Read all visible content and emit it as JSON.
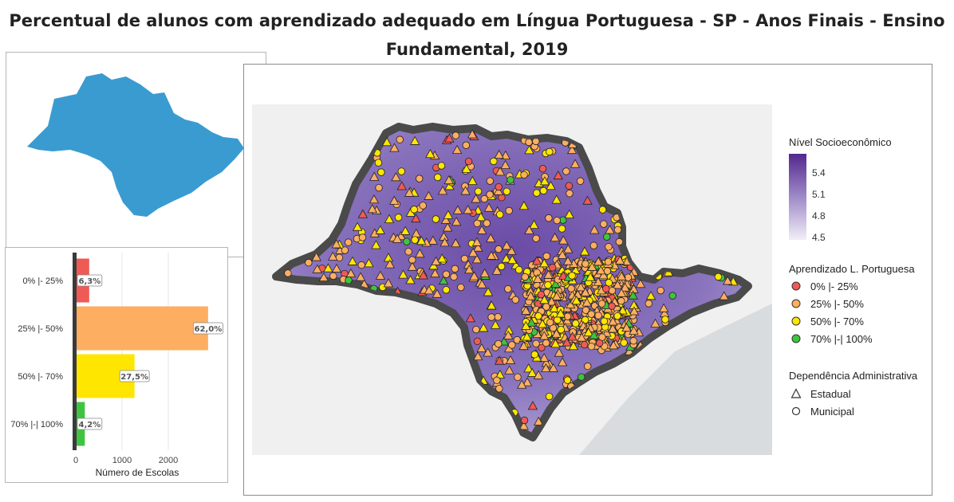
{
  "title": "Percentual de alunos com aprendizado adequado em Língua Portuguesa - SP - Anos Finais - Ensino Fundamental, 2019",
  "colors": {
    "low": "#f05a55",
    "mid_low": "#fdae61",
    "mid_high": "#ffe600",
    "high": "#3fc43f",
    "locator": "#3a9bd0",
    "nse_low": "#f1eef6",
    "nse_high": "#54278f"
  },
  "chart_data": [
    {
      "type": "bar",
      "orientation": "horizontal",
      "categories": [
        "0% |- 25%",
        "25% |- 50%",
        "50% |- 70%",
        "70% |-| 100%"
      ],
      "values": [
        290,
        2860,
        1270,
        195
      ],
      "data_labels": [
        "6,3%",
        "62,0%",
        "27,5%",
        "4,2%"
      ],
      "xlabel": "Número de Escolas",
      "xticks": [
        0,
        1000,
        2000
      ],
      "xlim": [
        0,
        3000
      ],
      "grid": true
    },
    {
      "type": "scatter",
      "subtype": "map",
      "legends": {
        "nse": {
          "title": "Nível Socioeconômico",
          "ticks": [
            "5.4",
            "5.1",
            "4.8",
            "4.5"
          ]
        },
        "learning": {
          "title": "Aprendizado L. Portuguesa",
          "items": [
            "0% |- 25%",
            "25% |- 50%",
            "50% |- 70%",
            "70% |-| 100%"
          ]
        },
        "dependency": {
          "title": "Dependência Administrativa",
          "items": [
            "Estadual",
            "Municipal"
          ]
        }
      }
    }
  ]
}
